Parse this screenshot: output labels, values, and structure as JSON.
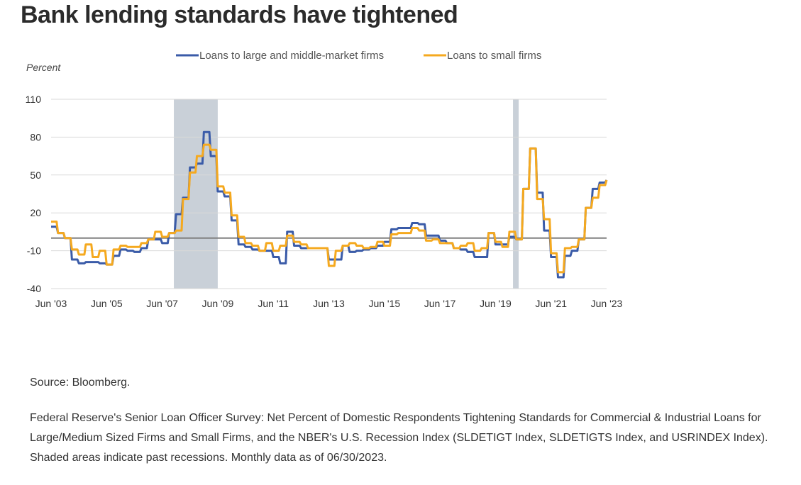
{
  "title": "Bank lending standards have tightened",
  "source": "Source: Bloomberg.",
  "description": "Federal Reserve's Senior Loan Officer Survey: Net Percent of Domestic Respondents Tightening Standards for Commercial & Industrial Loans for Large/Medium Sized Firms and Small Firms, and the NBER's U.S. Recession Index (SLDETIGT Index, SLDETIGTS Index, and USRINDEX Index). Shaded areas indicate past recessions. Monthly data as of 06/30/2023.",
  "chart_data": {
    "type": "line",
    "title": "Bank lending standards have tightened",
    "ylabel": "Percent",
    "xlabel": "",
    "ylim": [
      -40,
      110
    ],
    "yticks": [
      110,
      80,
      50,
      20,
      -10,
      -40
    ],
    "ytick_labels": [
      "110",
      "80",
      "50",
      "20",
      "-10",
      "-40"
    ],
    "xlim": [
      "2003-06",
      "2023-06"
    ],
    "xticks": [
      "Jun '03",
      "Jun '05",
      "Jun '07",
      "Jun '09",
      "Jun '11",
      "Jun '13",
      "Jun '15",
      "Jun '17",
      "Jun '19",
      "Jun '21",
      "Jun '23"
    ],
    "x_start": "Q2 2003",
    "x_frequency": "quarterly",
    "grid": true,
    "zero_line": true,
    "legend_position": "top-center",
    "recessions": [
      {
        "start": 2007.92,
        "end": 2009.5
      },
      {
        "start": 2020.13,
        "end": 2020.33
      }
    ],
    "series": [
      {
        "name": "Loans to large and middle-market firms",
        "color": "#3a5ba8",
        "values": [
          9,
          4,
          0,
          -17,
          -20,
          -19,
          -19,
          -20,
          -21,
          -14,
          -9,
          -10,
          -11,
          -8,
          -1,
          -1,
          -4,
          4,
          19,
          32,
          56,
          59,
          84,
          65,
          37,
          33,
          14,
          -5,
          -7,
          -9,
          -10,
          -10,
          -15,
          -20,
          5,
          -6,
          -8,
          -8,
          -8,
          -8,
          -17,
          -17,
          -6,
          -11,
          -10,
          -9,
          -8,
          -6,
          -3,
          7,
          8,
          8,
          12,
          11,
          2,
          2,
          -2,
          -4,
          -8,
          -9,
          -11,
          -15,
          -15,
          4,
          -5,
          -5,
          1,
          -1,
          39,
          71,
          36,
          6,
          -15,
          -31,
          -14,
          -10,
          -1,
          24,
          39,
          44,
          46
        ]
      },
      {
        "name": "Loans to small firms",
        "color": "#f5a91f",
        "values": [
          13,
          4,
          0,
          -9,
          -13,
          -5,
          -15,
          -10,
          -21,
          -9,
          -6,
          -7,
          -7,
          -4,
          -1,
          5,
          1,
          4,
          6,
          31,
          52,
          65,
          74,
          70,
          41,
          36,
          18,
          1,
          -4,
          -6,
          -10,
          -4,
          -10,
          -6,
          2,
          -3,
          -5,
          -8,
          -8,
          -8,
          -22,
          -10,
          -6,
          -4,
          -6,
          -8,
          -7,
          -3,
          -6,
          3,
          4,
          4,
          8,
          6,
          -2,
          -1,
          -4,
          -4,
          -8,
          -6,
          -4,
          -10,
          -8,
          4,
          -3,
          -7,
          5,
          -1,
          39,
          71,
          31,
          15,
          -12,
          -27,
          -8,
          -7,
          -1,
          24,
          32,
          42,
          46
        ]
      }
    ]
  }
}
